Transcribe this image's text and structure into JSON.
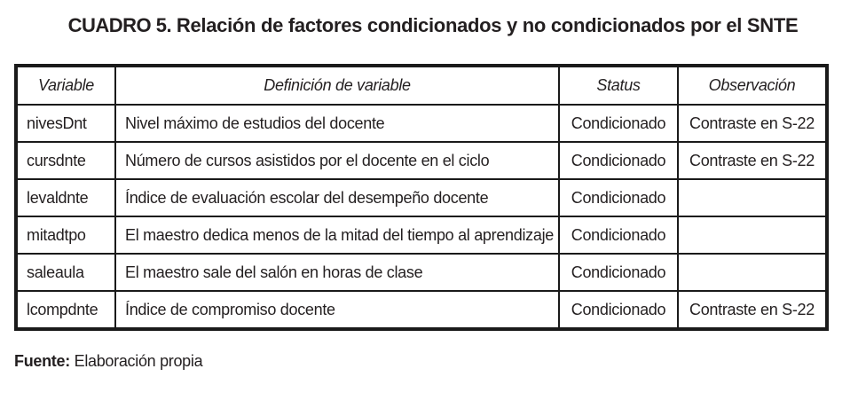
{
  "title": {
    "label": "CUADRO 5.",
    "text": " Relación de factores condicionados y no condicionados por el SNTE"
  },
  "table": {
    "columns": {
      "variable": "Variable",
      "definicion": "Definición de variable",
      "status": "Status",
      "observacion": "Observación"
    },
    "rows": [
      {
        "variable": "nivesDnt",
        "definicion": "Nivel máximo de estudios del docente",
        "status": "Condicionado",
        "observacion": "Contraste en S-22"
      },
      {
        "variable": "cursdnte",
        "definicion": "Número de cursos asistidos por el docente en el ciclo",
        "status": "Condicionado",
        "observacion": "Contraste en S-22"
      },
      {
        "variable": "levaldnte",
        "definicion": "Índice de evaluación escolar del desempeño docente",
        "status": "Condicionado",
        "observacion": ""
      },
      {
        "variable": "mitadtpo",
        "definicion": "El maestro dedica menos de la mitad del tiempo al aprendizaje",
        "status": "Condicionado",
        "observacion": ""
      },
      {
        "variable": "saleaula",
        "definicion": "El maestro sale del salón en horas de clase",
        "status": "Condicionado",
        "observacion": ""
      },
      {
        "variable": "lcompdnte",
        "definicion": "Índice de compromiso docente",
        "status": "Condicionado",
        "observacion": "Contraste en S-22"
      }
    ]
  },
  "footer": {
    "label": "Fuente:",
    "text": " Elaboración propia"
  },
  "colors": {
    "text": "#231f20",
    "border": "#1a1a1a",
    "background": "#ffffff"
  }
}
